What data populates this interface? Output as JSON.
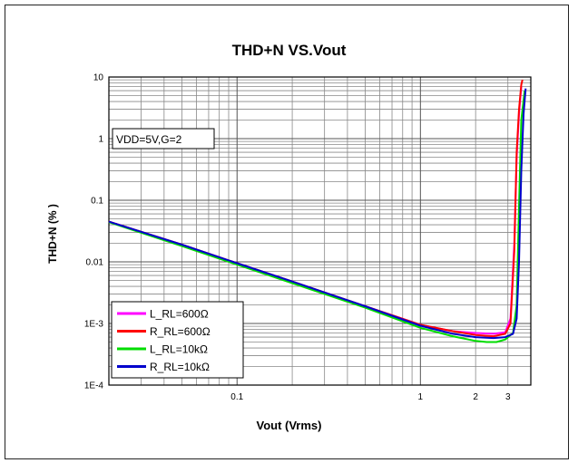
{
  "chart_data": {
    "type": "line",
    "title": "THD+N VS.Vout",
    "xlabel": "Vout (Vrms)",
    "ylabel": "THD+N (% )",
    "x_scale": "log",
    "y_scale": "log",
    "xlim": [
      0.02,
      4
    ],
    "ylim": [
      0.0001,
      10
    ],
    "x_tick_labels": [
      {
        "value": 0.1,
        "label": "0.1"
      },
      {
        "value": 1,
        "label": "1"
      },
      {
        "value": 2,
        "label": "2"
      },
      {
        "value": 3,
        "label": "3"
      }
    ],
    "y_tick_labels": [
      {
        "value": 10,
        "label": "10"
      },
      {
        "value": 1,
        "label": "1"
      },
      {
        "value": 0.1,
        "label": "0.1"
      },
      {
        "value": 0.01,
        "label": "0.01"
      },
      {
        "value": 0.001,
        "label": "1E-3"
      },
      {
        "value": 0.0001,
        "label": "1E-4"
      }
    ],
    "grid": true,
    "annotation": "VDD=5V,G=2",
    "legend_position": "bottom-left",
    "series": [
      {
        "name": "L_RL=600Ω",
        "color": "#ff00ff",
        "x": [
          0.02,
          0.05,
          0.1,
          0.2,
          0.5,
          1,
          1.5,
          2,
          2.5,
          2.9,
          3.1,
          3.25,
          3.35,
          3.45,
          3.55
        ],
        "y": [
          0.045,
          0.019,
          0.0095,
          0.0048,
          0.0019,
          0.00095,
          0.00075,
          0.0007,
          0.00068,
          0.00072,
          0.0012,
          0.02,
          0.5,
          2.5,
          7
        ]
      },
      {
        "name": "R_RL=600Ω",
        "color": "#ff0000",
        "x": [
          0.02,
          0.05,
          0.1,
          0.2,
          0.5,
          1,
          1.5,
          2,
          2.5,
          2.9,
          3.1,
          3.25,
          3.35,
          3.45,
          3.55,
          3.6
        ],
        "y": [
          0.045,
          0.019,
          0.0095,
          0.0048,
          0.0019,
          0.00095,
          0.00075,
          0.00065,
          0.00062,
          0.00068,
          0.001,
          0.015,
          0.6,
          3,
          7.5,
          9
        ]
      },
      {
        "name": "L_RL=10kΩ",
        "color": "#00dd00",
        "x": [
          0.02,
          0.05,
          0.1,
          0.2,
          0.5,
          1,
          1.5,
          2,
          2.3,
          2.6,
          2.9,
          3.2,
          3.35,
          3.45,
          3.55,
          3.7
        ],
        "y": [
          0.044,
          0.018,
          0.009,
          0.0045,
          0.0018,
          0.00085,
          0.00062,
          0.00052,
          0.0005,
          0.0005,
          0.00055,
          0.0007,
          0.002,
          0.08,
          2,
          6
        ]
      },
      {
        "name": "R_RL=10kΩ",
        "color": "#0000cc",
        "x": [
          0.02,
          0.05,
          0.1,
          0.2,
          0.5,
          1,
          1.5,
          2,
          2.5,
          2.9,
          3.2,
          3.35,
          3.45,
          3.55,
          3.65,
          3.75
        ],
        "y": [
          0.045,
          0.019,
          0.0095,
          0.0048,
          0.0019,
          0.00092,
          0.00068,
          0.0006,
          0.00058,
          0.0006,
          0.00068,
          0.0012,
          0.01,
          0.3,
          2.5,
          6.5
        ]
      }
    ]
  }
}
